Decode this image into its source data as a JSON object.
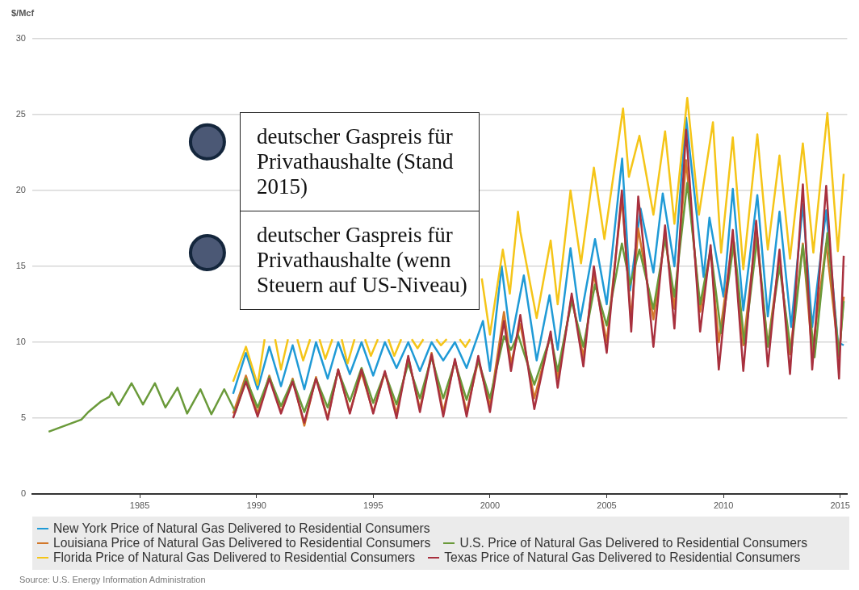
{
  "chart_data": {
    "type": "line",
    "ylabel": "$/Mcf",
    "xlim": [
      1980.4,
      2015.3
    ],
    "xticks": [
      1985,
      1990,
      1995,
      2000,
      2005,
      2010,
      2015
    ],
    "ylim": [
      0,
      30
    ],
    "yticks": [
      0,
      5,
      10,
      15,
      20,
      25,
      30
    ],
    "grid": "y",
    "legend": "bottom",
    "marker": "none",
    "line_style": "solid",
    "annotations": [
      {
        "text": "deutscher Gaspreis für Privathaushalte (Stand 2015)",
        "x": 1987.9,
        "y": 23.2
      },
      {
        "text": "deutscher Gaspreis für Privathaushalte (wenn Steuern auf US-Niveau)",
        "x": 1987.9,
        "y": 15.9
      },
      "Source: U.S. Energy Information Administration"
    ],
    "series": [
      {
        "name": "New York Price of Natural Gas Delivered to Residential Consumers",
        "color": "#1f9ad6",
        "x": [
          1989.0,
          1989.55,
          1990.05,
          1990.55,
          1991.05,
          1991.55,
          1992.05,
          1992.55,
          1993.05,
          1993.5,
          1994.0,
          1994.5,
          1995.0,
          1995.5,
          1996.0,
          1996.5,
          1997.0,
          1997.5,
          1998.0,
          1998.5,
          1999.0,
          1999.7,
          2000.0,
          2000.5,
          2000.9,
          2001.45,
          2002.0,
          2002.55,
          2002.9,
          2003.45,
          2003.86,
          2004.5,
          2005.0,
          2005.66,
          2006.0,
          2006.45,
          2007.0,
          2007.4,
          2007.9,
          2008.4,
          2009.15,
          2009.4,
          2010.0,
          2010.4,
          2010.85,
          2011.45,
          2011.9,
          2012.4,
          2012.9,
          2013.4,
          2013.8,
          2014.4,
          2014.9,
          2015.15
        ],
        "values": [
          6.6,
          9.3,
          6.9,
          9.7,
          7.1,
          9.8,
          6.9,
          10.0,
          7.6,
          10.0,
          7.9,
          10.0,
          7.8,
          10.0,
          8.3,
          10.0,
          8.1,
          10.0,
          8.8,
          10.0,
          8.3,
          11.4,
          8.1,
          15.0,
          10.0,
          14.4,
          8.8,
          13.1,
          9.5,
          16.2,
          11.4,
          16.8,
          12.5,
          22.1,
          13.4,
          18.8,
          14.6,
          19.8,
          15.0,
          24.8,
          14.3,
          18.2,
          13.0,
          20.1,
          12.1,
          19.7,
          11.7,
          18.6,
          11.0,
          19.1,
          11.0,
          18.7,
          10.0,
          9.8
        ]
      },
      {
        "name": "Louisiana Price of Natural Gas Delivered to Residential Consumers",
        "color": "#d2782a",
        "x": [
          1989.0,
          1989.55,
          1990.05,
          1990.55,
          1991.05,
          1991.55,
          1992.05,
          1992.55,
          1993.05,
          1993.5,
          1994.0,
          1994.5,
          1995.0,
          1995.5,
          1996.0,
          1996.5,
          1997.0,
          1997.5,
          1998.0,
          1998.5,
          1999.0,
          1999.5,
          2000.0,
          2000.6,
          2000.9,
          2001.3,
          2001.9,
          2002.6,
          2002.9,
          2003.5,
          2004.0,
          2004.45,
          2005.0,
          2005.65,
          2006.05,
          2006.35,
          2007.0,
          2007.5,
          2007.9,
          2008.4,
          2009.0,
          2009.45,
          2009.8,
          2010.4,
          2010.85,
          2011.4,
          2011.9,
          2012.4,
          2012.85,
          2013.4,
          2013.8,
          2014.4,
          2014.95,
          2015.15
        ],
        "values": [
          5.3,
          7.8,
          5.3,
          7.8,
          5.4,
          7.6,
          4.5,
          7.7,
          5.0,
          8.2,
          5.4,
          8.0,
          5.4,
          8.0,
          5.3,
          9.0,
          5.6,
          9.3,
          5.4,
          8.8,
          5.4,
          8.8,
          5.8,
          12.0,
          8.6,
          11.2,
          6.3,
          10.5,
          7.6,
          13.0,
          9.0,
          14.5,
          10.0,
          19.5,
          11.5,
          17.5,
          11.5,
          17.0,
          12.2,
          22.0,
          12.0,
          16.0,
          10.0,
          16.8,
          9.8,
          17.2,
          9.8,
          15.5,
          9.2,
          16.5,
          9.3,
          16.5,
          9.0,
          13.0
        ]
      },
      {
        "name": "U.S. Price of Natural Gas Delivered to Residential Consumers",
        "color": "#6a9a3a",
        "x": [
          1981.1,
          1981.8,
          1982.5,
          1982.8,
          1983.35,
          1983.7,
          1983.8,
          1984.1,
          1984.65,
          1985.14,
          1985.65,
          1986.1,
          1986.62,
          1987.03,
          1987.6,
          1988.07,
          1988.62,
          1989.1,
          1989.55,
          1990.05,
          1990.55,
          1991.05,
          1991.55,
          1992.05,
          1992.55,
          1993.05,
          1993.5,
          1994.0,
          1994.5,
          1995.0,
          1995.5,
          1996.0,
          1996.5,
          1997.0,
          1997.5,
          1998.0,
          1998.5,
          1999.0,
          1999.5,
          2000.0,
          2000.6,
          2000.9,
          2001.2,
          2001.9,
          2002.6,
          2002.9,
          2003.5,
          2004.0,
          2004.5,
          2005.0,
          2005.65,
          2006.0,
          2006.4,
          2007.0,
          2007.5,
          2007.9,
          2008.45,
          2009.0,
          2009.45,
          2009.9,
          2010.45,
          2010.9,
          2011.45,
          2011.9,
          2012.4,
          2012.9,
          2013.4,
          2013.9,
          2014.45,
          2014.95,
          2015.15
        ],
        "values": [
          4.1,
          4.5,
          4.9,
          5.4,
          6.1,
          6.4,
          6.7,
          5.85,
          7.3,
          5.9,
          7.3,
          5.7,
          7.0,
          5.3,
          6.9,
          5.25,
          6.9,
          5.4,
          7.6,
          5.7,
          7.7,
          5.8,
          7.5,
          5.4,
          7.6,
          5.7,
          8.1,
          6.1,
          8.3,
          6.0,
          8.0,
          5.9,
          8.6,
          6.3,
          9.0,
          6.3,
          8.7,
          6.2,
          8.8,
          6.3,
          10.4,
          9.5,
          10.5,
          7.2,
          10.4,
          8.1,
          12.7,
          9.7,
          13.8,
          11.1,
          16.5,
          13.8,
          16.1,
          12.2,
          16.8,
          13.0,
          20.5,
          12.5,
          16.1,
          10.6,
          16.6,
          9.9,
          16.9,
          9.7,
          15.0,
          9.3,
          16.4,
          9.0,
          17.2,
          9.1,
          12.7
        ]
      },
      {
        "name": "Florida Price of Natural Gas Delivered to Residential Consumers",
        "color": "#f5c518",
        "x": [
          1989.0,
          1989.55,
          1990.05,
          1990.35,
          1990.55,
          1990.8,
          1991.05,
          1991.35,
          1991.55,
          1991.75,
          1992.0,
          1992.3,
          1992.5,
          1992.7,
          1992.95,
          1993.25,
          1993.45,
          1993.65,
          1993.9,
          1994.2,
          1994.45,
          1994.65,
          1994.9,
          1995.2,
          1995.45,
          1995.65,
          1995.9,
          1996.2,
          1996.45,
          1996.65,
          1996.9,
          1997.15,
          1997.45,
          1997.7,
          1997.9,
          1998.15,
          1998.45,
          1998.7,
          1998.95,
          1999.15,
          1999.4,
          1999.65,
          2000.0,
          2000.55,
          2000.85,
          2001.2,
          2001.3,
          2002.0,
          2002.6,
          2002.9,
          2003.45,
          2003.9,
          2004.45,
          2004.9,
          2005.7,
          2005.95,
          2006.4,
          2007.0,
          2007.5,
          2007.9,
          2008.45,
          2008.95,
          2009.55,
          2009.9,
          2010.4,
          2010.85,
          2011.45,
          2011.9,
          2012.4,
          2012.85,
          2013.4,
          2013.85,
          2014.45,
          2014.9,
          2015.15
        ],
        "values": [
          7.4,
          9.7,
          7.2,
          10.2,
          null,
          10.2,
          8.2,
          10.2,
          null,
          10.2,
          8.8,
          10.2,
          null,
          10.2,
          8.9,
          10.2,
          null,
          10.2,
          8.6,
          10.2,
          null,
          10.2,
          9.1,
          10.2,
          null,
          10.2,
          9.1,
          10.2,
          null,
          10.2,
          9.6,
          10.2,
          null,
          10.2,
          9.8,
          10.2,
          null,
          10.2,
          9.7,
          10.2,
          null,
          14.2,
          10.5,
          16.1,
          13.2,
          18.6,
          17.3,
          11.6,
          16.7,
          12.5,
          20.0,
          15.2,
          21.5,
          16.8,
          25.4,
          20.9,
          23.6,
          18.4,
          23.9,
          17.8,
          26.1,
          18.4,
          24.5,
          15.9,
          23.5,
          14.8,
          23.7,
          16.1,
          22.3,
          15.5,
          23.1,
          15.9,
          25.1,
          16.0,
          21.1
        ]
      },
      {
        "name": "Texas Price of Natural Gas Delivered to Residential Consumers",
        "color": "#a8303e",
        "x": [
          1989.0,
          1989.55,
          1990.05,
          1990.55,
          1991.05,
          1991.55,
          1992.05,
          1992.55,
          1993.05,
          1993.5,
          1994.0,
          1994.5,
          1995.0,
          1995.5,
          1996.0,
          1996.5,
          1997.0,
          1997.5,
          1998.0,
          1998.5,
          1999.0,
          1999.5,
          2000.0,
          2000.6,
          2000.9,
          2001.3,
          2001.9,
          2002.6,
          2002.9,
          2003.5,
          2004.0,
          2004.45,
          2005.0,
          2005.65,
          2006.05,
          2006.35,
          2006.5,
          2007.0,
          2007.5,
          2007.9,
          2008.4,
          2009.0,
          2009.45,
          2009.8,
          2010.4,
          2010.85,
          2011.4,
          2011.9,
          2012.4,
          2012.85,
          2013.4,
          2013.8,
          2014.4,
          2014.95,
          2015.15
        ],
        "values": [
          5.0,
          7.4,
          5.1,
          7.6,
          5.3,
          7.4,
          4.7,
          7.6,
          4.9,
          8.2,
          5.3,
          8.2,
          5.3,
          8.1,
          5.0,
          9.1,
          5.4,
          9.2,
          5.1,
          8.9,
          5.1,
          9.1,
          5.4,
          11.4,
          8.1,
          11.8,
          5.6,
          10.7,
          7.0,
          13.2,
          8.4,
          15.0,
          9.3,
          20.0,
          10.7,
          19.6,
          17.5,
          9.7,
          17.7,
          10.9,
          24.0,
          10.7,
          16.4,
          8.2,
          17.4,
          8.1,
          18.0,
          8.4,
          16.1,
          7.9,
          20.4,
          8.2,
          20.3,
          7.6,
          15.7
        ]
      }
    ]
  }
}
